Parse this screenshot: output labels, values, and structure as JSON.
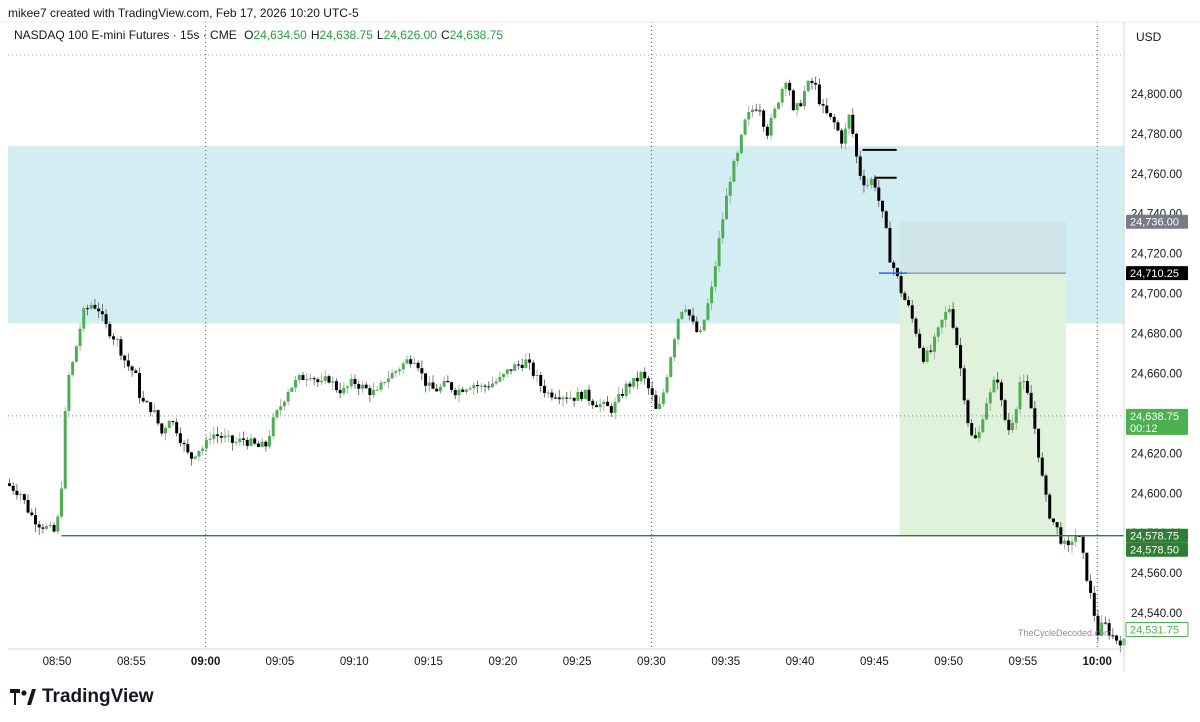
{
  "header": {
    "credit": "mikee7 created with TradingView.com, Feb 17, 2026 10:20 UTC-5",
    "symbol": "NASDAQ 100 E-mini Futures · 15s · CME",
    "ohlc": [
      {
        "k": "O",
        "v": "24,634.50"
      },
      {
        "k": "H",
        "v": "24,638.75"
      },
      {
        "k": "L",
        "v": "24,626.00"
      },
      {
        "k": "C",
        "v": "24,638.75"
      }
    ]
  },
  "currency": "USD",
  "brand": {
    "name": "TradingView"
  },
  "watermark": "TheCycleDecoded.com",
  "colors": {
    "up": "#4caf50",
    "down": "#000000",
    "zone": "#d2eef3",
    "target": "#e0f2dc",
    "stop": "#cfe3e8",
    "line": "#2e7d32",
    "blue": "#2962ff"
  },
  "chart_data": {
    "type": "candlestick",
    "symbol": "NASDAQ 100 E-mini Futures",
    "interval": "15s",
    "yaxis": {
      "label": "USD",
      "range": [
        24522,
        24824
      ],
      "ticks": [
        "24,540.00",
        "24,560.00",
        "24,580.00",
        "24,600.00",
        "24,620.00",
        "24,640.00",
        "24,660.00",
        "24,680.00",
        "24,700.00",
        "24,720.00",
        "24,740.00",
        "24,760.00",
        "24,780.00",
        "24,800.00"
      ],
      "tick_values": [
        24540,
        24560,
        24580,
        24600,
        24620,
        24640,
        24660,
        24680,
        24700,
        24720,
        24740,
        24760,
        24780,
        24800
      ]
    },
    "xaxis": {
      "ticks": [
        "08:50",
        "08:55",
        "09:00",
        "09:05",
        "09:10",
        "09:15",
        "09:20",
        "09:25",
        "09:30",
        "09:35",
        "09:40",
        "09:45",
        "09:50",
        "09:55",
        "10:00"
      ],
      "tick_minutes": [
        530,
        535,
        540,
        545,
        550,
        555,
        560,
        565,
        570,
        575,
        580,
        585,
        590,
        595,
        600
      ],
      "bold_ticks": [
        "09:00",
        "10:00"
      ],
      "range_minutes": [
        526.7,
        601.8
      ]
    },
    "session_lines_minutes": [
      540,
      570,
      600
    ],
    "zone": {
      "from": 24685,
      "to": 24774
    },
    "support_line": {
      "price": 24578.75,
      "from_minute": 530.3
    },
    "position": {
      "type": "short",
      "entry": 24710.25,
      "stop": 24736.0,
      "target": 24578.5,
      "from_minute": 586.7,
      "to_minute": 597.9
    },
    "levels": [
      {
        "price": 24772,
        "from_minute": 584.2,
        "to_minute": 586.5
      },
      {
        "price": 24758,
        "from_minute": 585.0,
        "to_minute": 586.5
      }
    ],
    "last_price": 24638.75,
    "price_labels": [
      {
        "value": "24,736.00",
        "price": 24736.0,
        "style": "gray"
      },
      {
        "value": "24,710.25",
        "price": 24710.25,
        "style": "black"
      },
      {
        "value": "24,638.75",
        "price": 24638.75,
        "style": "green",
        "sub": "00:12"
      },
      {
        "value": "24,578.75",
        "price": 24578.75,
        "style": "darkgreen"
      },
      {
        "value": "24,578.50",
        "price": 24578.5,
        "style": "darkgreen"
      },
      {
        "value": "24,531.75",
        "price": 24531.75,
        "style": "outline"
      }
    ],
    "path": [
      [
        526.8,
        24605
      ],
      [
        527.8,
        24600
      ],
      [
        528.4,
        24590
      ],
      [
        529.0,
        24585
      ],
      [
        530.2,
        24580
      ],
      [
        530.6,
        24608
      ],
      [
        530.9,
        24655
      ],
      [
        531.3,
        24665
      ],
      [
        532.0,
        24690
      ],
      [
        532.6,
        24695
      ],
      [
        533.1,
        24692
      ],
      [
        533.4,
        24685
      ],
      [
        534.3,
        24676
      ],
      [
        534.9,
        24665
      ],
      [
        535.5,
        24660
      ],
      [
        535.9,
        24646
      ],
      [
        536.7,
        24642
      ],
      [
        537.3,
        24630
      ],
      [
        537.8,
        24638
      ],
      [
        538.3,
        24632
      ],
      [
        538.7,
        24625
      ],
      [
        539.2,
        24617
      ],
      [
        539.7,
        24622
      ],
      [
        540.2,
        24623
      ],
      [
        540.6,
        24630
      ],
      [
        541.4,
        24628
      ],
      [
        542.2,
        24625
      ],
      [
        542.8,
        24627
      ],
      [
        543.3,
        24625
      ],
      [
        543.8,
        24623
      ],
      [
        544.3,
        24624
      ],
      [
        544.8,
        24636
      ],
      [
        545.3,
        24644
      ],
      [
        545.8,
        24652
      ],
      [
        546.5,
        24657
      ],
      [
        547.3,
        24660
      ],
      [
        548.0,
        24654
      ],
      [
        548.5,
        24658
      ],
      [
        549.0,
        24653
      ],
      [
        549.5,
        24651
      ],
      [
        550.2,
        24656
      ],
      [
        550.6,
        24654
      ],
      [
        551.3,
        24651
      ],
      [
        551.8,
        24650
      ],
      [
        552.3,
        24657
      ],
      [
        552.7,
        24659
      ],
      [
        553.3,
        24663
      ],
      [
        553.9,
        24667
      ],
      [
        554.4,
        24668
      ],
      [
        554.9,
        24657
      ],
      [
        555.4,
        24652
      ],
      [
        555.9,
        24652
      ],
      [
        556.5,
        24655
      ],
      [
        557.1,
        24651
      ],
      [
        557.6,
        24653
      ],
      [
        558.2,
        24655
      ],
      [
        558.8,
        24653
      ],
      [
        559.5,
        24655
      ],
      [
        560.1,
        24657
      ],
      [
        560.7,
        24662
      ],
      [
        561.2,
        24664
      ],
      [
        561.8,
        24666
      ],
      [
        562.4,
        24659
      ],
      [
        562.9,
        24653
      ],
      [
        563.3,
        24650
      ],
      [
        563.8,
        24650
      ],
      [
        564.4,
        24649
      ],
      [
        565.0,
        24648
      ],
      [
        565.7,
        24650
      ],
      [
        566.3,
        24646
      ],
      [
        566.9,
        24644
      ],
      [
        567.6,
        24642
      ],
      [
        568.1,
        24648
      ],
      [
        568.6,
        24654
      ],
      [
        569.2,
        24656
      ],
      [
        569.6,
        24660
      ],
      [
        570.3,
        24648
      ],
      [
        570.6,
        24640
      ],
      [
        570.9,
        24645
      ],
      [
        571.3,
        24660
      ],
      [
        571.7,
        24675
      ],
      [
        572.1,
        24690
      ],
      [
        572.5,
        24695
      ],
      [
        573.0,
        24685
      ],
      [
        573.5,
        24678
      ],
      [
        573.9,
        24690
      ],
      [
        574.3,
        24702
      ],
      [
        574.7,
        24722
      ],
      [
        575.1,
        24740
      ],
      [
        575.6,
        24760
      ],
      [
        576.1,
        24770
      ],
      [
        576.5,
        24785
      ],
      [
        577.0,
        24792
      ],
      [
        577.5,
        24795
      ],
      [
        578.0,
        24780
      ],
      [
        578.5,
        24790
      ],
      [
        578.9,
        24800
      ],
      [
        579.4,
        24810
      ],
      [
        579.8,
        24790
      ],
      [
        580.3,
        24796
      ],
      [
        580.7,
        24804
      ],
      [
        581.2,
        24806
      ],
      [
        581.7,
        24793
      ],
      [
        582.2,
        24788
      ],
      [
        582.6,
        24785
      ],
      [
        583.1,
        24776
      ],
      [
        583.6,
        24790
      ],
      [
        584.0,
        24770
      ],
      [
        584.3,
        24760
      ],
      [
        584.7,
        24754
      ],
      [
        585.2,
        24758
      ],
      [
        585.6,
        24745
      ],
      [
        586.0,
        24733
      ],
      [
        586.3,
        24718
      ],
      [
        586.7,
        24710
      ],
      [
        587.1,
        24700
      ],
      [
        587.6,
        24692
      ],
      [
        588.1,
        24680
      ],
      [
        588.5,
        24668
      ],
      [
        589.0,
        24670
      ],
      [
        589.5,
        24680
      ],
      [
        589.9,
        24688
      ],
      [
        590.3,
        24693
      ],
      [
        590.7,
        24680
      ],
      [
        591.1,
        24660
      ],
      [
        591.5,
        24638
      ],
      [
        591.9,
        24625
      ],
      [
        592.3,
        24630
      ],
      [
        592.7,
        24645
      ],
      [
        593.1,
        24650
      ],
      [
        593.5,
        24660
      ],
      [
        593.9,
        24640
      ],
      [
        594.3,
        24632
      ],
      [
        594.7,
        24640
      ],
      [
        595.1,
        24658
      ],
      [
        595.5,
        24650
      ],
      [
        595.9,
        24640
      ],
      [
        596.3,
        24620
      ],
      [
        596.7,
        24600
      ],
      [
        597.1,
        24588
      ],
      [
        597.5,
        24583
      ],
      [
        597.9,
        24575
      ],
      [
        598.3,
        24572
      ],
      [
        598.7,
        24580
      ],
      [
        599.1,
        24576
      ],
      [
        599.5,
        24560
      ],
      [
        599.9,
        24545
      ],
      [
        600.3,
        24530
      ],
      [
        600.7,
        24535
      ],
      [
        601.1,
        24530
      ],
      [
        601.5,
        24527
      ],
      [
        601.9,
        24526
      ],
      [
        602.3,
        24524
      ]
    ]
  }
}
